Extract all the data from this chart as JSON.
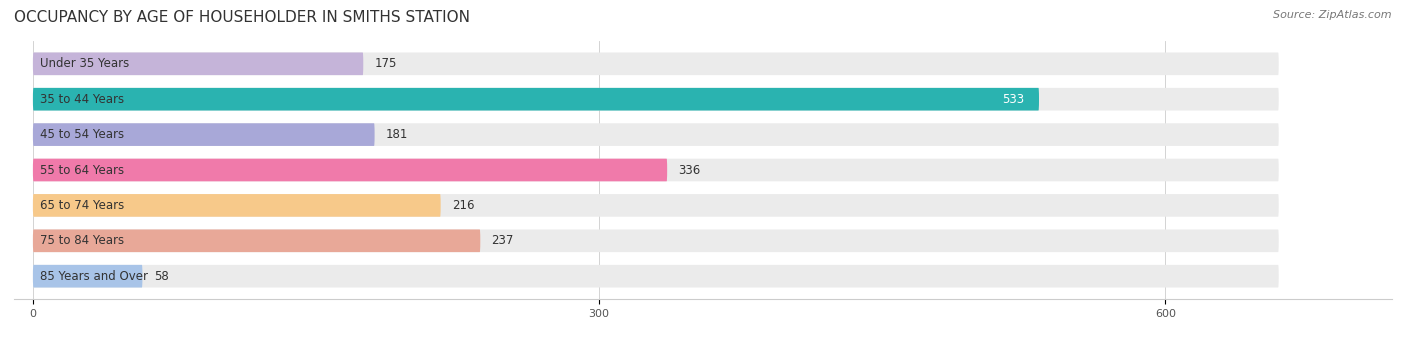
{
  "title": "OCCUPANCY BY AGE OF HOUSEHOLDER IN SMITHS STATION",
  "source": "Source: ZipAtlas.com",
  "categories": [
    "Under 35 Years",
    "35 to 44 Years",
    "45 to 54 Years",
    "55 to 64 Years",
    "65 to 74 Years",
    "75 to 84 Years",
    "85 Years and Over"
  ],
  "values": [
    175,
    533,
    181,
    336,
    216,
    237,
    58
  ],
  "bar_colors": [
    "#c5b4d9",
    "#2ab3b0",
    "#a8a8d8",
    "#f07aaa",
    "#f7c98a",
    "#e8a898",
    "#a8c4e8"
  ],
  "bar_bg_color": "#ebebeb",
  "xlim": [
    0,
    660
  ],
  "xticks": [
    0,
    300,
    600
  ],
  "title_fontsize": 11,
  "source_fontsize": 8,
  "label_fontsize": 8.5,
  "value_fontsize": 8.5,
  "bar_height": 0.62,
  "background_color": "#ffffff"
}
